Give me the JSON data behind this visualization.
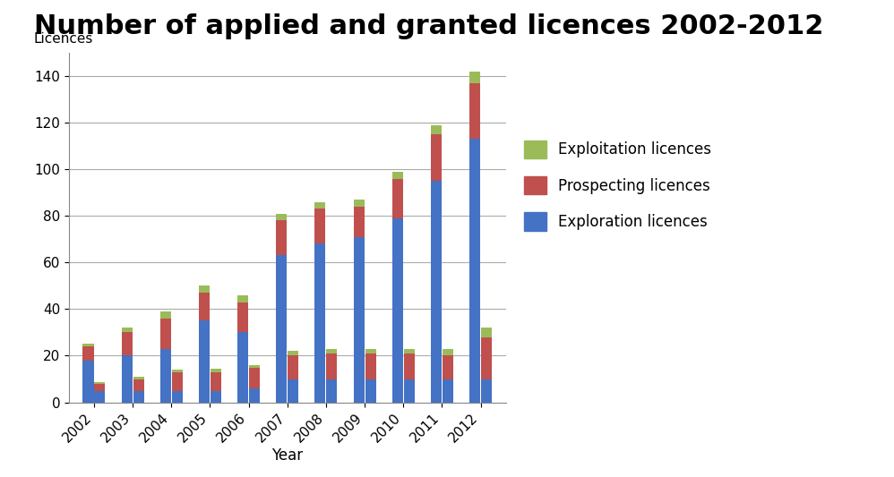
{
  "title": "Number of applied and granted licences 2002-2012",
  "years": [
    2002,
    2003,
    2004,
    2005,
    2006,
    2007,
    2008,
    2009,
    2010,
    2011,
    2012
  ],
  "xlabel": "Year",
  "ylabel": "Licences",
  "ylim": [
    0,
    150
  ],
  "yticks": [
    0,
    20,
    40,
    60,
    80,
    100,
    120,
    140
  ],
  "legend_labels": [
    "Exploitation licences",
    "Prospecting licences",
    "Exploration licences"
  ],
  "colors": {
    "exploration": "#4472C4",
    "prospecting": "#C0504D",
    "exploitation": "#9BBB59"
  },
  "applied": {
    "exploration": [
      18,
      20,
      23,
      35,
      30,
      63,
      68,
      71,
      79,
      95,
      113
    ],
    "prospecting": [
      6,
      10,
      13,
      12,
      13,
      15,
      15,
      13,
      17,
      20,
      24
    ],
    "exploitation": [
      1,
      2,
      3,
      3,
      3,
      3,
      3,
      3,
      3,
      4,
      5
    ]
  },
  "granted": {
    "exploration": [
      5,
      5,
      5,
      5,
      6,
      10,
      10,
      10,
      10,
      10,
      10
    ],
    "prospecting": [
      3,
      5,
      8,
      8,
      9,
      10,
      11,
      11,
      11,
      10,
      18
    ],
    "exploitation": [
      0.5,
      1,
      1,
      1.5,
      1,
      2,
      2,
      2,
      2,
      3,
      4
    ]
  },
  "background_color": "#ffffff",
  "title_fontsize": 22,
  "axis_fontsize": 11,
  "legend_fontsize": 12
}
